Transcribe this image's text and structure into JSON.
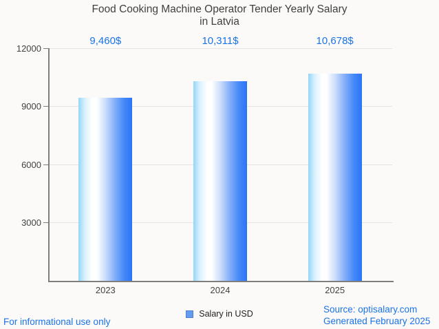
{
  "title": {
    "line1": "Food Cooking Machine Operator Tender Yearly Salary",
    "line2": "in Latvia"
  },
  "chart_data": {
    "type": "bar",
    "title": "Food Cooking Machine Operator Tender Yearly Salary in Latvia",
    "categories": [
      "2023",
      "2024",
      "2025"
    ],
    "values": [
      9460,
      10311,
      10678
    ],
    "value_labels": [
      "9,460$",
      "10,311$",
      "10,678$"
    ],
    "series_name": "Salary in USD",
    "xlabel": "",
    "ylabel": "",
    "ylim": [
      0,
      12000
    ],
    "yticks": [
      3000,
      6000,
      9000,
      12000
    ],
    "grid": "horizontal",
    "legend_position": "bottom-center"
  },
  "legend": {
    "label": "Salary in USD"
  },
  "footer": {
    "left": "For informational use only",
    "source": "Source: optisalary.com",
    "generated": "Generated February 2025"
  },
  "colors": {
    "accent_blue": "#1a73e8",
    "bar_gradient_left": "#96d5f8",
    "bar_gradient_mid": "#ffffff",
    "bar_gradient_right": "#2a73f6",
    "legend_marker": "#639bef",
    "axis": "#7d7d7d",
    "gridline": "#e5e4e1",
    "title_text": "#3f3f3f",
    "background": "#fbfaf8"
  }
}
